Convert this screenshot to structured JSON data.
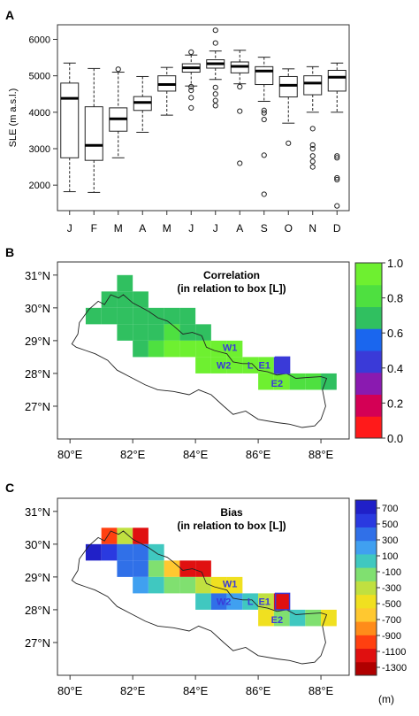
{
  "panels": {
    "a": {
      "letter": "A"
    },
    "b": {
      "letter": "B",
      "title_line1": "Correlation",
      "title_line2": "(in relation to box [L])"
    },
    "c": {
      "letter": "C",
      "title_line1": "Bias",
      "title_line2": "(in relation to box [L])"
    }
  },
  "region_labels": [
    "W1",
    "W2",
    "L",
    "E1",
    "E2"
  ],
  "chart_data": [
    {
      "type": "box",
      "panel": "A",
      "ylabel": "SLE (m a.s.l.)",
      "ylim": [
        1300,
        6400
      ],
      "yticks": [
        2000,
        3000,
        4000,
        5000,
        6000
      ],
      "categories": [
        "J",
        "F",
        "M",
        "A",
        "M",
        "J",
        "J",
        "A",
        "S",
        "O",
        "N",
        "D"
      ],
      "boxes": [
        {
          "wlo": 1820,
          "q1": 2750,
          "med": 4380,
          "q3": 4800,
          "whi": 5350,
          "outliers": []
        },
        {
          "wlo": 1800,
          "q1": 2680,
          "med": 3090,
          "q3": 4150,
          "whi": 5200,
          "outliers": []
        },
        {
          "wlo": 2750,
          "q1": 3480,
          "med": 3820,
          "q3": 4120,
          "whi": 5100,
          "outliers": [
            5180
          ]
        },
        {
          "wlo": 3450,
          "q1": 4050,
          "med": 4270,
          "q3": 4430,
          "whi": 4980,
          "outliers": []
        },
        {
          "wlo": 3920,
          "q1": 4580,
          "med": 4760,
          "q3": 5000,
          "whi": 5230,
          "outliers": []
        },
        {
          "wlo": 4720,
          "q1": 5100,
          "med": 5220,
          "q3": 5330,
          "whi": 5570,
          "outliers": [
            4120,
            4400,
            4600,
            4700,
            5650
          ]
        },
        {
          "wlo": 4900,
          "q1": 5210,
          "med": 5330,
          "q3": 5440,
          "whi": 5680,
          "outliers": [
            4180,
            4320,
            4500,
            4680,
            5900,
            6250
          ]
        },
        {
          "wlo": 4780,
          "q1": 5080,
          "med": 5260,
          "q3": 5380,
          "whi": 5700,
          "outliers": [
            2600,
            4030,
            4700
          ]
        },
        {
          "wlo": 4300,
          "q1": 4760,
          "med": 5130,
          "q3": 5250,
          "whi": 5510,
          "outliers": [
            1750,
            2820,
            3800,
            3980,
            4050
          ]
        },
        {
          "wlo": 3700,
          "q1": 4420,
          "med": 4740,
          "q3": 4980,
          "whi": 5190,
          "outliers": [
            3150
          ]
        },
        {
          "wlo": 4000,
          "q1": 4480,
          "med": 4800,
          "q3": 5000,
          "whi": 5250,
          "outliers": [
            2500,
            2650,
            2800,
            3000,
            3100,
            3550
          ]
        },
        {
          "wlo": 4000,
          "q1": 4580,
          "med": 4960,
          "q3": 5150,
          "whi": 5350,
          "outliers": [
            1430,
            2150,
            2200,
            2750,
            2800
          ]
        }
      ]
    },
    {
      "type": "heatmap",
      "panel": "B",
      "title": "Correlation\n(in relation to box [L])",
      "xlim": [
        79.6,
        88.9
      ],
      "ylim": [
        26.0,
        31.4
      ],
      "xticks": [
        80,
        82,
        84,
        86,
        88
      ],
      "xtick_labels": [
        "80°E",
        "82°E",
        "84°E",
        "86°E",
        "88°E"
      ],
      "yticks": [
        27,
        28,
        29,
        30,
        31
      ],
      "ytick_labels": [
        "27°N",
        "28°N",
        "29°N",
        "30°N",
        "31°N"
      ],
      "colorbar": {
        "ticks": [
          "0.0",
          "0.2",
          "0.4",
          "0.6",
          "0.8",
          "1.0"
        ],
        "colors": [
          "#ff1a1a",
          "#d40055",
          "#8a1ab0",
          "#3a3ad8",
          "#1a66ee",
          "#30c060",
          "#4ee040",
          "#6ef030"
        ]
      },
      "cell_size_deg": 0.5,
      "cells": [
        {
          "lon": 81.25,
          "lat": 30.25,
          "v": 0.68
        },
        {
          "lon": 81.75,
          "lat": 30.25,
          "v": 0.64
        },
        {
          "lon": 81.75,
          "lat": 30.75,
          "v": 0.65
        },
        {
          "lon": 82.25,
          "lat": 30.25,
          "v": 0.66
        },
        {
          "lon": 80.75,
          "lat": 29.75,
          "v": 0.67
        },
        {
          "lon": 81.25,
          "lat": 29.75,
          "v": 0.66
        },
        {
          "lon": 81.75,
          "lat": 29.75,
          "v": 0.64
        },
        {
          "lon": 82.25,
          "lat": 29.75,
          "v": 0.66
        },
        {
          "lon": 81.75,
          "lat": 29.25,
          "v": 0.65
        },
        {
          "lon": 82.25,
          "lat": 29.25,
          "v": 0.66
        },
        {
          "lon": 82.75,
          "lat": 29.75,
          "v": 0.64
        },
        {
          "lon": 83.25,
          "lat": 29.75,
          "v": 0.66
        },
        {
          "lon": 83.75,
          "lat": 29.75,
          "v": 0.65
        },
        {
          "lon": 82.25,
          "lat": 28.75,
          "v": 0.66
        },
        {
          "lon": 82.75,
          "lat": 29.25,
          "v": 0.72
        },
        {
          "lon": 83.25,
          "lat": 29.25,
          "v": 0.78
        },
        {
          "lon": 83.75,
          "lat": 29.25,
          "v": 0.66
        },
        {
          "lon": 84.25,
          "lat": 29.25,
          "v": 0.65
        },
        {
          "lon": 82.75,
          "lat": 28.75,
          "v": 0.85
        },
        {
          "lon": 83.25,
          "lat": 28.75,
          "v": 0.88
        },
        {
          "lon": 83.75,
          "lat": 28.75,
          "v": 0.9
        },
        {
          "lon": 84.25,
          "lat": 28.75,
          "v": 0.92
        },
        {
          "lon": 84.75,
          "lat": 28.75,
          "v": 0.95
        },
        {
          "lon": 85.25,
          "lat": 28.75,
          "v": 0.93
        },
        {
          "lon": 84.25,
          "lat": 28.25,
          "v": 0.9
        },
        {
          "lon": 84.75,
          "lat": 28.25,
          "v": 0.92
        },
        {
          "lon": 85.25,
          "lat": 28.25,
          "v": 0.95
        },
        {
          "lon": 85.75,
          "lat": 28.25,
          "v": 0.96
        },
        {
          "lon": 86.25,
          "lat": 28.25,
          "v": 0.93
        },
        {
          "lon": 86.75,
          "lat": 28.25,
          "v": 0.45
        },
        {
          "lon": 86.25,
          "lat": 27.75,
          "v": 0.92
        },
        {
          "lon": 86.75,
          "lat": 27.75,
          "v": 0.9
        },
        {
          "lon": 87.25,
          "lat": 27.75,
          "v": 0.85
        },
        {
          "lon": 87.75,
          "lat": 27.75,
          "v": 0.82
        },
        {
          "lon": 88.25,
          "lat": 27.75,
          "v": 0.66
        }
      ]
    },
    {
      "type": "heatmap",
      "panel": "C",
      "title": "Bias\n(in relation to box [L])",
      "xlim": [
        79.6,
        88.9
      ],
      "ylim": [
        26.0,
        31.4
      ],
      "xticks": [
        80,
        82,
        84,
        86,
        88
      ],
      "xtick_labels": [
        "80°E",
        "82°E",
        "84°E",
        "86°E",
        "88°E"
      ],
      "yticks": [
        27,
        28,
        29,
        30,
        31
      ],
      "ytick_labels": [
        "27°N",
        "28°N",
        "29°N",
        "30°N",
        "31°N"
      ],
      "colorbar": {
        "ticks": [
          "700",
          "500",
          "300",
          "100",
          "-100",
          "-300",
          "-500",
          "-700",
          "-900",
          "-1100",
          "-1300"
        ],
        "unit": "(m)",
        "colors": [
          "#b00000",
          "#e01010",
          "#ff4010",
          "#ff8c1a",
          "#ffc830",
          "#f0e020",
          "#c0e040",
          "#80e070",
          "#40c8c0",
          "#40a0f0",
          "#3070e8",
          "#2a3ae0",
          "#2020c8"
        ]
      },
      "cell_size_deg": 0.5,
      "cells": [
        {
          "lon": 81.25,
          "lat": 30.25,
          "v": -1000
        },
        {
          "lon": 81.75,
          "lat": 30.25,
          "v": -300
        },
        {
          "lon": 82.25,
          "lat": 30.25,
          "v": -1150
        },
        {
          "lon": 80.75,
          "lat": 29.75,
          "v": 650
        },
        {
          "lon": 81.25,
          "lat": 29.75,
          "v": 550
        },
        {
          "lon": 81.75,
          "lat": 29.75,
          "v": 450
        },
        {
          "lon": 82.25,
          "lat": 29.75,
          "v": 400
        },
        {
          "lon": 82.75,
          "lat": 29.75,
          "v": 50
        },
        {
          "lon": 81.75,
          "lat": 29.25,
          "v": 420
        },
        {
          "lon": 82.25,
          "lat": 29.25,
          "v": 300
        },
        {
          "lon": 82.75,
          "lat": 29.25,
          "v": -100
        },
        {
          "lon": 83.25,
          "lat": 29.25,
          "v": -700
        },
        {
          "lon": 83.75,
          "lat": 29.25,
          "v": -1200
        },
        {
          "lon": 84.25,
          "lat": 29.25,
          "v": -1100
        },
        {
          "lon": 82.25,
          "lat": 28.75,
          "v": 200
        },
        {
          "lon": 82.75,
          "lat": 28.75,
          "v": 100
        },
        {
          "lon": 83.25,
          "lat": 28.75,
          "v": -200
        },
        {
          "lon": 83.75,
          "lat": 28.75,
          "v": -100
        },
        {
          "lon": 84.25,
          "lat": 28.75,
          "v": -300
        },
        {
          "lon": 84.75,
          "lat": 28.75,
          "v": -500
        },
        {
          "lon": 85.25,
          "lat": 28.75,
          "v": -450
        },
        {
          "lon": 84.25,
          "lat": 28.25,
          "v": 100
        },
        {
          "lon": 84.75,
          "lat": 28.25,
          "v": 350
        },
        {
          "lon": 85.25,
          "lat": 28.25,
          "v": 250
        },
        {
          "lon": 85.75,
          "lat": 28.25,
          "v": 0
        },
        {
          "lon": 86.25,
          "lat": 28.25,
          "v": -300
        },
        {
          "lon": 86.75,
          "lat": 28.25,
          "v": -1150
        },
        {
          "lon": 86.25,
          "lat": 27.75,
          "v": -500
        },
        {
          "lon": 86.75,
          "lat": 27.75,
          "v": -150
        },
        {
          "lon": 87.25,
          "lat": 27.75,
          "v": 100
        },
        {
          "lon": 87.75,
          "lat": 27.75,
          "v": -100
        },
        {
          "lon": 88.25,
          "lat": 27.75,
          "v": -500
        }
      ]
    }
  ]
}
